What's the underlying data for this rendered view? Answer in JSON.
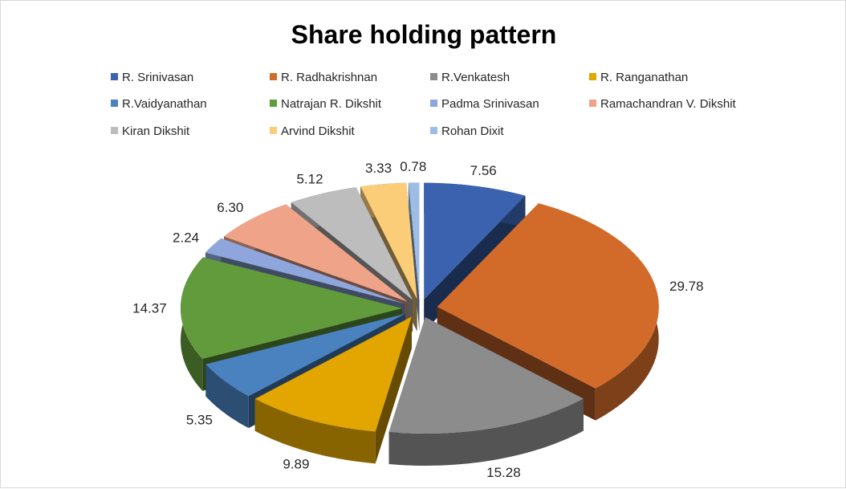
{
  "chart_data": {
    "type": "pie",
    "variant": "3d-exploded",
    "title": "Share holding pattern",
    "legend_position": "top",
    "slices": [
      {
        "name": "R. Srinivasan",
        "value": 7.56,
        "label": "7.56",
        "color": "#3A62AE"
      },
      {
        "name": "R. Radhakrishnan",
        "value": 29.78,
        "label": "29.78",
        "color": "#D26B2A"
      },
      {
        "name": "R.Venkatesh",
        "value": 15.28,
        "label": "15.28",
        "color": "#8C8C8C"
      },
      {
        "name": "R. Ranganathan",
        "value": 9.89,
        "label": "9.89",
        "color": "#E3A600"
      },
      {
        "name": "R.Vaidyanathan",
        "value": 5.35,
        "label": "5.35",
        "color": "#4A82C0"
      },
      {
        "name": "Natrajan R. Dikshit",
        "value": 14.37,
        "label": "14.37",
        "color": "#629B3C"
      },
      {
        "name": "Padma Srinivasan",
        "value": 2.24,
        "label": "2.24",
        "color": "#8EA6DB"
      },
      {
        "name": "Ramachandran V. Dikshit",
        "value": 6.3,
        "label": "6.30",
        "color": "#EFA48A"
      },
      {
        "name": "Kiran Dikshit",
        "value": 5.12,
        "label": "5.12",
        "color": "#BDBDBD"
      },
      {
        "name": "Arvind Dikshit",
        "value": 3.33,
        "label": "3.33",
        "color": "#FCCD78"
      },
      {
        "name": "Rohan Dixit",
        "value": 0.78,
        "label": "0.78",
        "color": "#9DBDE4"
      }
    ]
  }
}
